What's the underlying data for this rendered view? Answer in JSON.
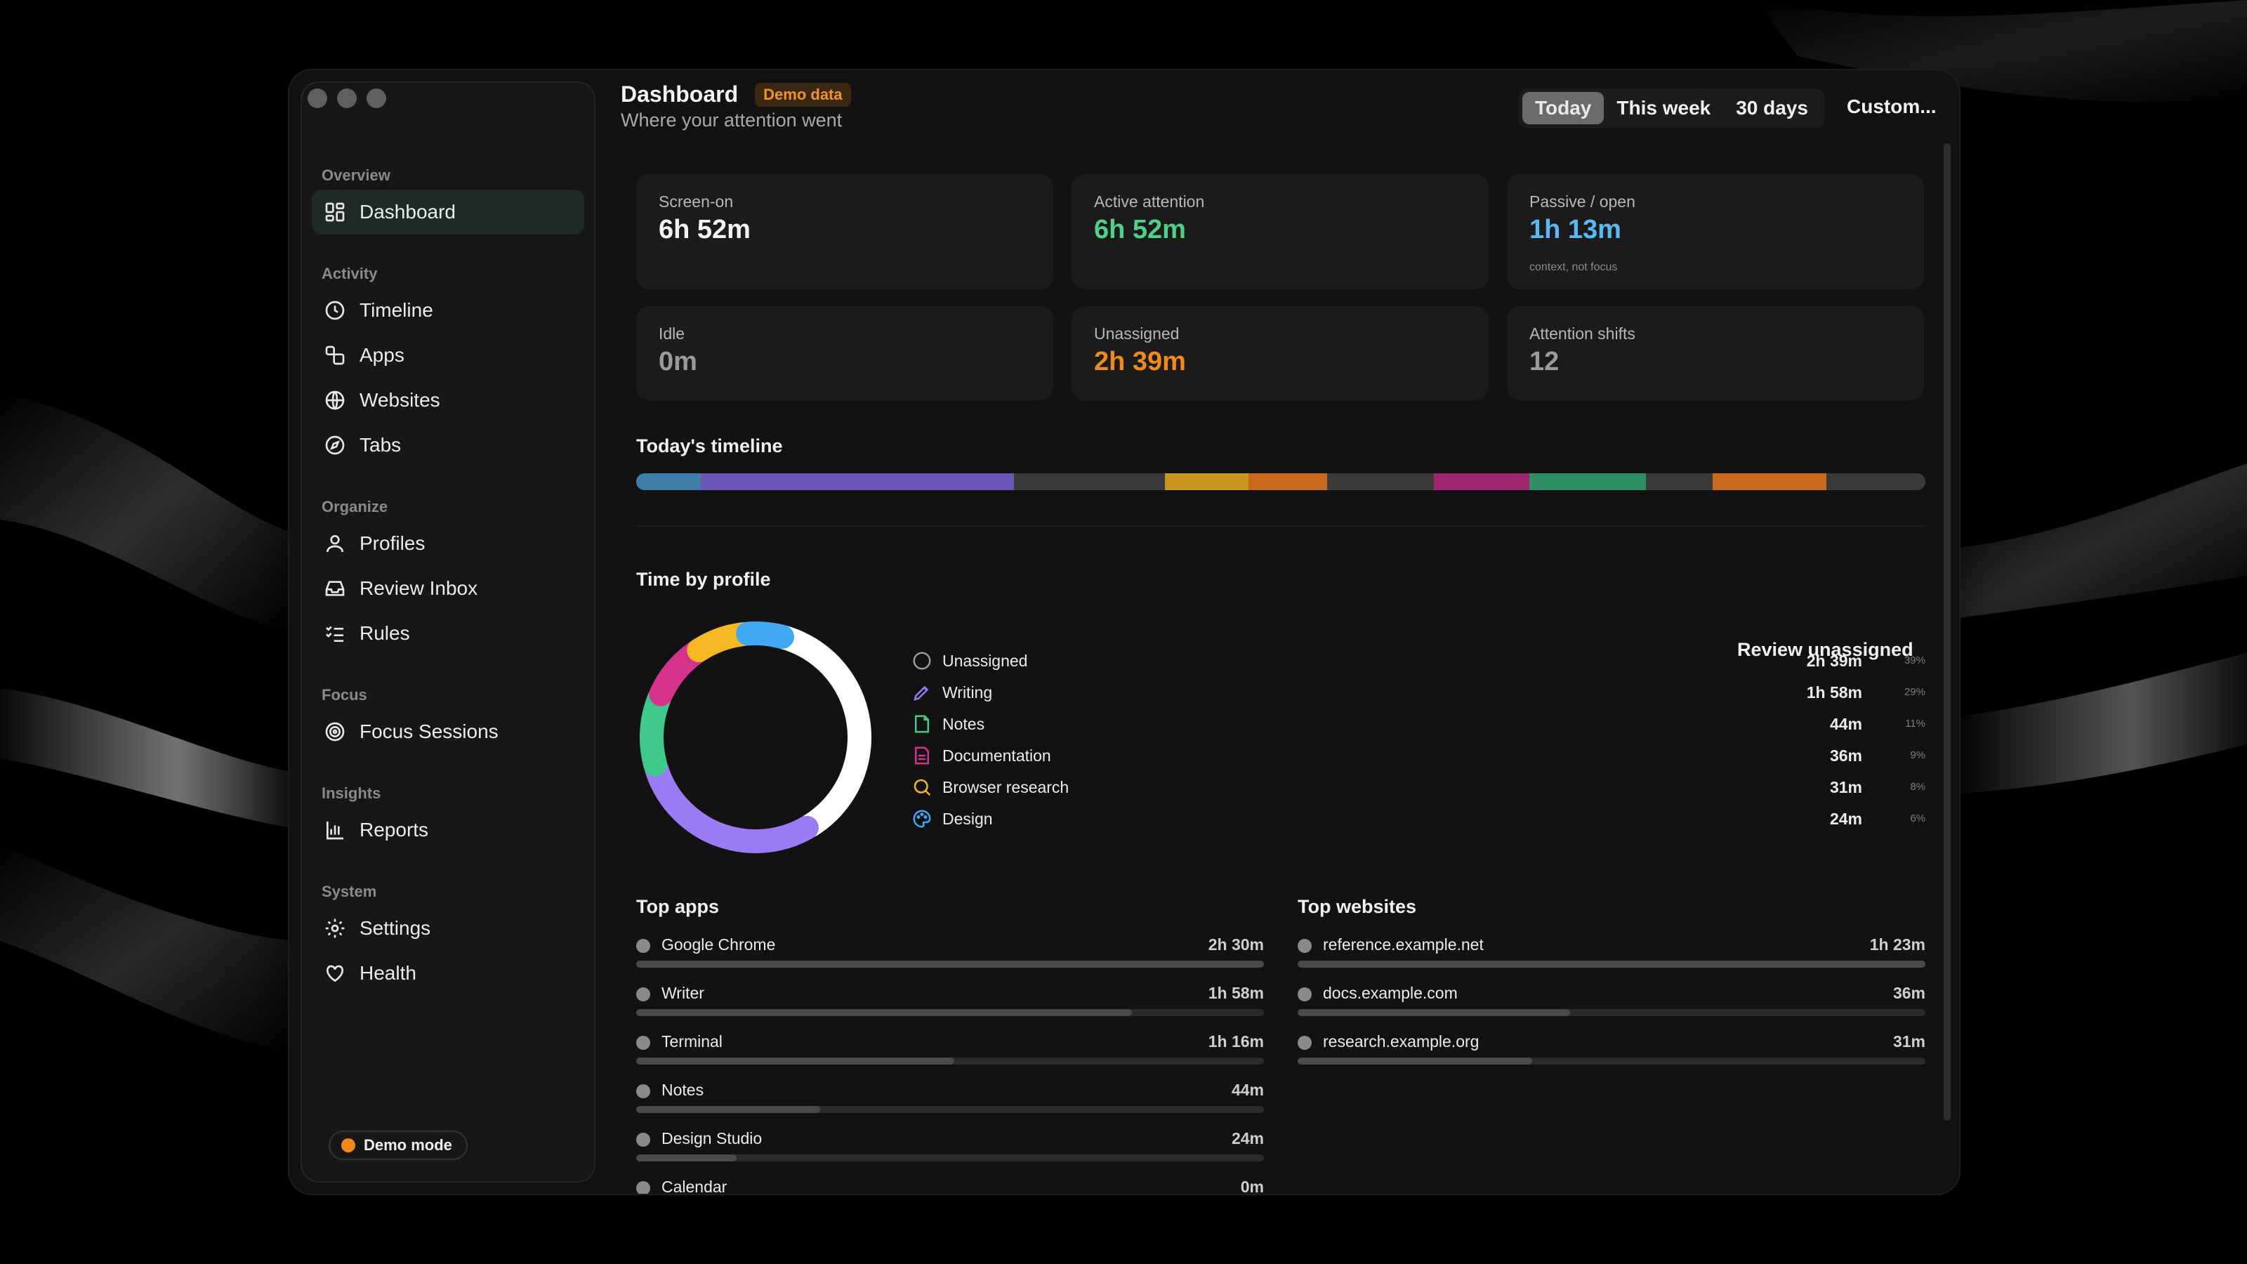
{
  "sidebar": {
    "sections": [
      {
        "label": "Overview",
        "items": [
          {
            "label": "Dashboard",
            "icon": "dashboard-icon"
          }
        ]
      },
      {
        "label": "Activity",
        "items": [
          {
            "label": "Timeline",
            "icon": "clock-icon"
          },
          {
            "label": "Apps",
            "icon": "apps-icon"
          },
          {
            "label": "Websites",
            "icon": "globe-icon"
          },
          {
            "label": "Tabs",
            "icon": "compass-icon"
          }
        ]
      },
      {
        "label": "Organize",
        "items": [
          {
            "label": "Profiles",
            "icon": "user-icon"
          },
          {
            "label": "Review Inbox",
            "icon": "inbox-icon"
          },
          {
            "label": "Rules",
            "icon": "checklist-icon"
          }
        ]
      },
      {
        "label": "Focus",
        "items": [
          {
            "label": "Focus Sessions",
            "icon": "target-icon"
          }
        ]
      },
      {
        "label": "Insights",
        "items": [
          {
            "label": "Reports",
            "icon": "bar-chart-icon"
          }
        ]
      },
      {
        "label": "System",
        "items": [
          {
            "label": "Settings",
            "icon": "gear-icon"
          },
          {
            "label": "Health",
            "icon": "heart-icon"
          }
        ]
      }
    ],
    "demo_mode": "Demo mode"
  },
  "header": {
    "title": "Dashboard",
    "badge": "Demo data",
    "subtitle": "Where your attention went",
    "ranges": [
      "Today",
      "This week",
      "30 days"
    ],
    "selected_range": "Today",
    "custom": "Custom..."
  },
  "stats": [
    {
      "label": "Screen-on",
      "value": "6h 52m",
      "color": "#f2f2f2",
      "note": ""
    },
    {
      "label": "Active attention",
      "value": "6h 52m",
      "color": "#4fcf8a",
      "note": ""
    },
    {
      "label": "Passive / open",
      "value": "1h 13m",
      "color": "#5ab8f5",
      "note": "context, not focus"
    },
    {
      "label": "Idle",
      "value": "0m",
      "color": "#9a9a9a",
      "note": ""
    },
    {
      "label": "Unassigned",
      "value": "2h 39m",
      "color": "#f08a1c",
      "note": ""
    },
    {
      "label": "Attention shifts",
      "value": "12",
      "color": "#9a9a9a",
      "note": ""
    }
  ],
  "timeline": {
    "title": "Today's timeline",
    "segments": [
      {
        "share": 0.05,
        "color": "#3f7ea8"
      },
      {
        "share": 0.243,
        "color": "#6a56b6"
      },
      {
        "share": 0.117,
        "color": "#3a3a3a"
      },
      {
        "share": 0.065,
        "color": "#c9951f"
      },
      {
        "share": 0.061,
        "color": "#c96a1a"
      },
      {
        "share": 0.083,
        "color": "#3a3a3a"
      },
      {
        "share": 0.074,
        "color": "#a0246e"
      },
      {
        "share": 0.09,
        "color": "#2f8f64"
      },
      {
        "share": 0.052,
        "color": "#3a3a3a"
      },
      {
        "share": 0.088,
        "color": "#c96a1a"
      },
      {
        "share": 0.077,
        "color": "#3a3a3a"
      }
    ]
  },
  "profiles": {
    "title": "Time by profile",
    "review_link": "Review unassigned",
    "items": [
      {
        "name": "Unassigned",
        "time": "2h 39m",
        "pct": "39%",
        "share": 0.39,
        "color": "#ffffff",
        "icon": "circle-icon",
        "icon_color": "#9a9a9a"
      },
      {
        "name": "Writing",
        "time": "1h 58m",
        "pct": "29%",
        "share": 0.29,
        "color": "#9b7af5",
        "icon": "pen-icon",
        "icon_color": "#9b7af5"
      },
      {
        "name": "Notes",
        "time": "44m",
        "pct": "11%",
        "share": 0.11,
        "color": "#3fc98a",
        "icon": "note-icon",
        "icon_color": "#3fc98a"
      },
      {
        "name": "Documentation",
        "time": "36m",
        "pct": "9%",
        "share": 0.09,
        "color": "#d6338c",
        "icon": "document-icon",
        "icon_color": "#d6338c"
      },
      {
        "name": "Browser research",
        "time": "31m",
        "pct": "8%",
        "share": 0.08,
        "color": "#f5b823",
        "icon": "search-icon",
        "icon_color": "#f5b823"
      },
      {
        "name": "Design",
        "time": "24m",
        "pct": "6%",
        "share": 0.06,
        "color": "#3fa9f5",
        "icon": "palette-icon",
        "icon_color": "#3fa9f5"
      }
    ]
  },
  "top_apps": {
    "title": "Top apps",
    "items": [
      {
        "name": "Google Chrome",
        "time": "2h 30m",
        "share": 1.0
      },
      {
        "name": "Writer",
        "time": "1h 58m",
        "share": 0.79
      },
      {
        "name": "Terminal",
        "time": "1h 16m",
        "share": 0.507
      },
      {
        "name": "Notes",
        "time": "44m",
        "share": 0.293
      },
      {
        "name": "Design Studio",
        "time": "24m",
        "share": 0.16
      },
      {
        "name": "Calendar",
        "time": "0m",
        "share": 0.0
      }
    ]
  },
  "top_websites": {
    "title": "Top websites",
    "items": [
      {
        "name": "reference.example.net",
        "time": "1h 23m",
        "share": 1.0
      },
      {
        "name": "docs.example.com",
        "time": "36m",
        "share": 0.434
      },
      {
        "name": "research.example.org",
        "time": "31m",
        "share": 0.374
      }
    ]
  }
}
